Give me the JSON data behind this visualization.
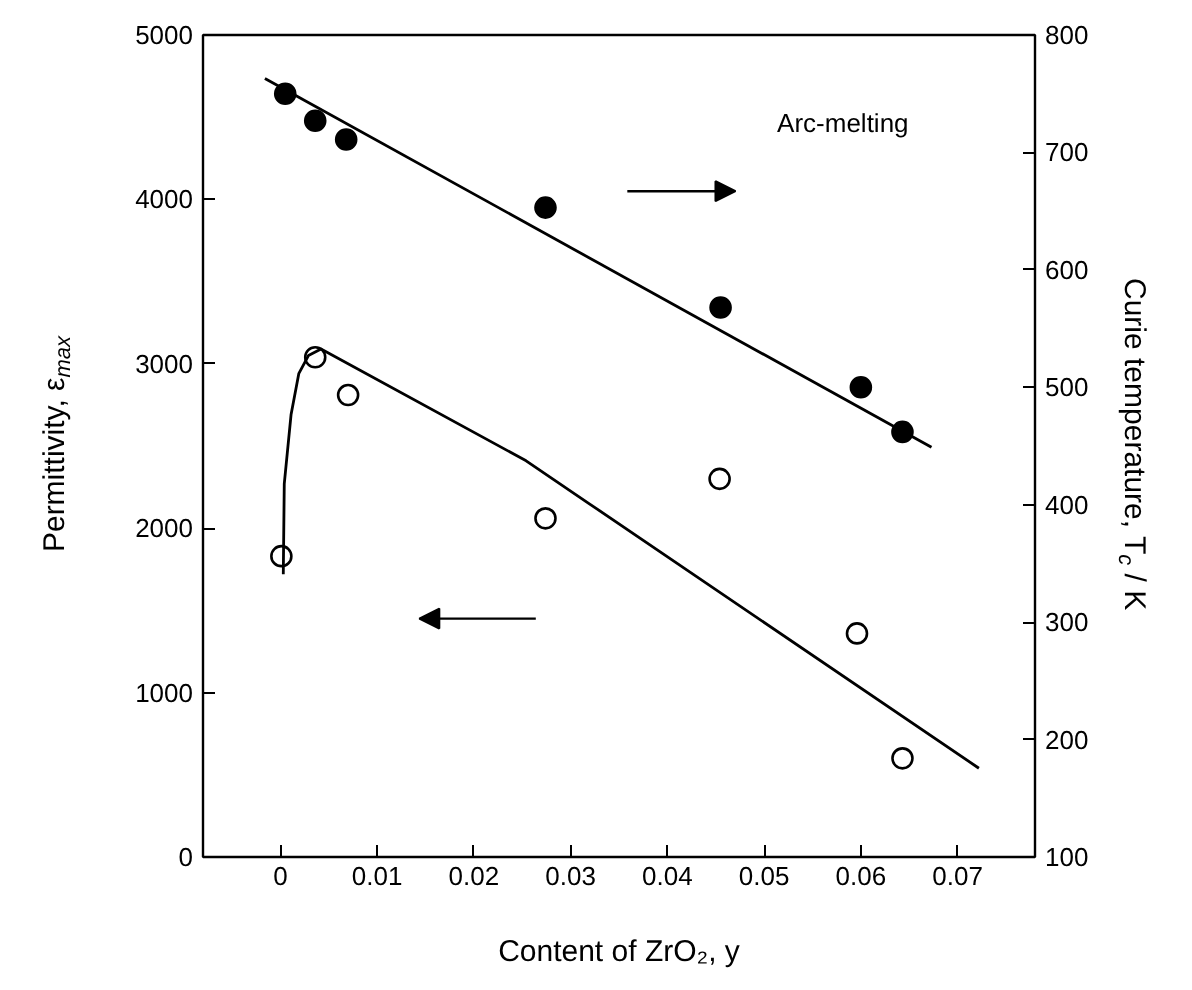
{
  "chart_data": {
    "type": "scatter",
    "xlabel": "Content of ZrO₂, y",
    "ylabel": "Permittivity, ε$_{max}$",
    "y2label": "Curie temperature, T$_{c}$ / K",
    "annotations": [
      "Arc-melting"
    ],
    "xlim": [
      -0.008,
      0.078
    ],
    "xticks": [
      0,
      0.01,
      0.02,
      0.03,
      0.04,
      0.05,
      0.06,
      0.07
    ],
    "ylim": [
      0,
      5000
    ],
    "yticks": [
      0,
      1000,
      2000,
      3000,
      4000,
      5000
    ],
    "y2lim": [
      100,
      800
    ],
    "y2ticks": [
      100,
      200,
      300,
      400,
      500,
      600,
      700,
      800
    ],
    "grid": false,
    "marker": "circle",
    "series": [
      {
        "color": "#ffffff",
        "x": [
          0.0001,
          0.0036,
          0.007,
          0.0274,
          0.0454,
          0.0596,
          0.0643
        ],
        "values": [
          1830,
          3040,
          2810,
          2060,
          2300,
          1360,
          600
        ]
      },
      {
        "type": "line",
        "color": "#000000",
        "marker": "none",
        "x": [
          0.0003,
          0.0004,
          0.0011,
          0.0019,
          0.0029,
          0.0042,
          0.0254,
          0.0319,
          0.0722
        ],
        "values": [
          1720,
          2270,
          2690,
          2940,
          3050,
          3090,
          2410,
          2150,
          540
        ]
      },
      {
        "color": "#000000",
        "axis": "y2",
        "x": [
          0.0005,
          0.0036,
          0.0068,
          0.0274,
          0.0455,
          0.06,
          0.0643
        ],
        "values": [
          750,
          727,
          711,
          653,
          568,
          500,
          462
        ]
      },
      {
        "type": "line",
        "color": "#000000",
        "marker": "none",
        "axis": "y2",
        "x": [
          -0.0016,
          0.0673
        ],
        "values": [
          763,
          449
        ]
      }
    ]
  }
}
